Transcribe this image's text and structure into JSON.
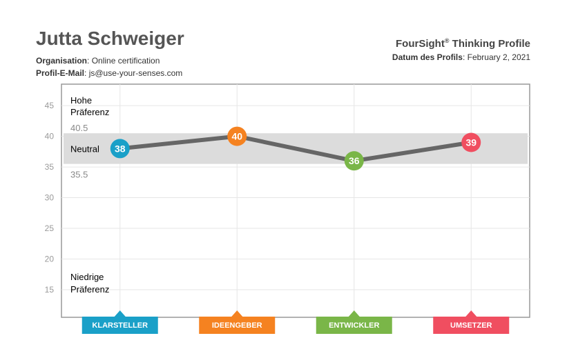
{
  "header": {
    "name": "Jutta Schweiger",
    "org_label": "Organisation",
    "org_value": "Online certification",
    "email_label": "Profil-E-Mail",
    "email_value": "js@use-your-senses.com",
    "title_main": "FourSight",
    "title_reg": "®",
    "title_rest": "Thinking Profile",
    "date_label": "Datum des Profils",
    "date_value": "February 2, 2021"
  },
  "chart_data": {
    "type": "line",
    "categories": [
      "KLARSTELLER",
      "IDEENGEBER",
      "ENTWICKLER",
      "UMSETZER"
    ],
    "values": [
      38,
      40,
      36,
      39
    ],
    "category_colors": [
      "#1aa0c8",
      "#f58220",
      "#7ab648",
      "#f04e60"
    ],
    "line_color": "#666666",
    "yticks": [
      15,
      20,
      25,
      30,
      35,
      40,
      45
    ],
    "ylim": [
      10.5,
      48.5
    ],
    "neutral_band": {
      "low": 35.5,
      "high": 40.5,
      "low_label": "35.5",
      "high_label": "40.5",
      "color": "#dcdcdc"
    },
    "labels": {
      "high_line1": "Hohe",
      "high_line2": "Präferenz",
      "neutral": "Neutral",
      "low_line1": "Niedrige",
      "low_line2": "Präferenz"
    },
    "grid": true
  }
}
